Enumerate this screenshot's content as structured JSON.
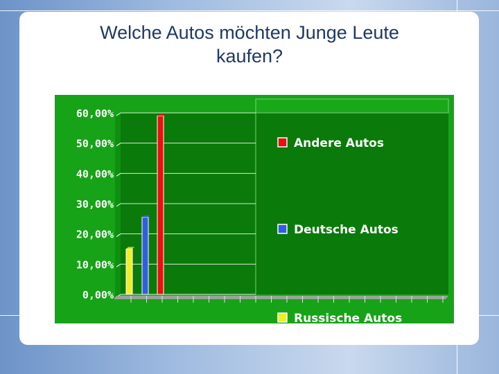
{
  "slide": {
    "title_line1": "Welche Autos möchten Junge Leute",
    "title_line2": "kaufen?"
  },
  "chart_data": {
    "type": "bar",
    "title": "",
    "xlabel": "",
    "ylabel": "",
    "ylim": [
      0,
      60
    ],
    "yticks": [
      "0,00%",
      "10,00%",
      "20,00%",
      "30,00%",
      "40,00%",
      "50,00%",
      "60,00%"
    ],
    "series": [
      {
        "name": "Russische Autos",
        "value": 15,
        "color": "#f0f020"
      },
      {
        "name": "Deutsche Autos",
        "value": 25.5,
        "color": "#2f5fe0"
      },
      {
        "name": "Andere Autos",
        "value": 59,
        "color": "#e81010"
      }
    ],
    "legend": {
      "placement": "right",
      "entries": [
        "Andere Autos",
        "Deutsche Autos",
        "Russische Autos"
      ]
    },
    "colors": {
      "background": "#17a317",
      "plot_background": "#0a7a0a",
      "grid": "#ffffff"
    },
    "grid": true
  }
}
